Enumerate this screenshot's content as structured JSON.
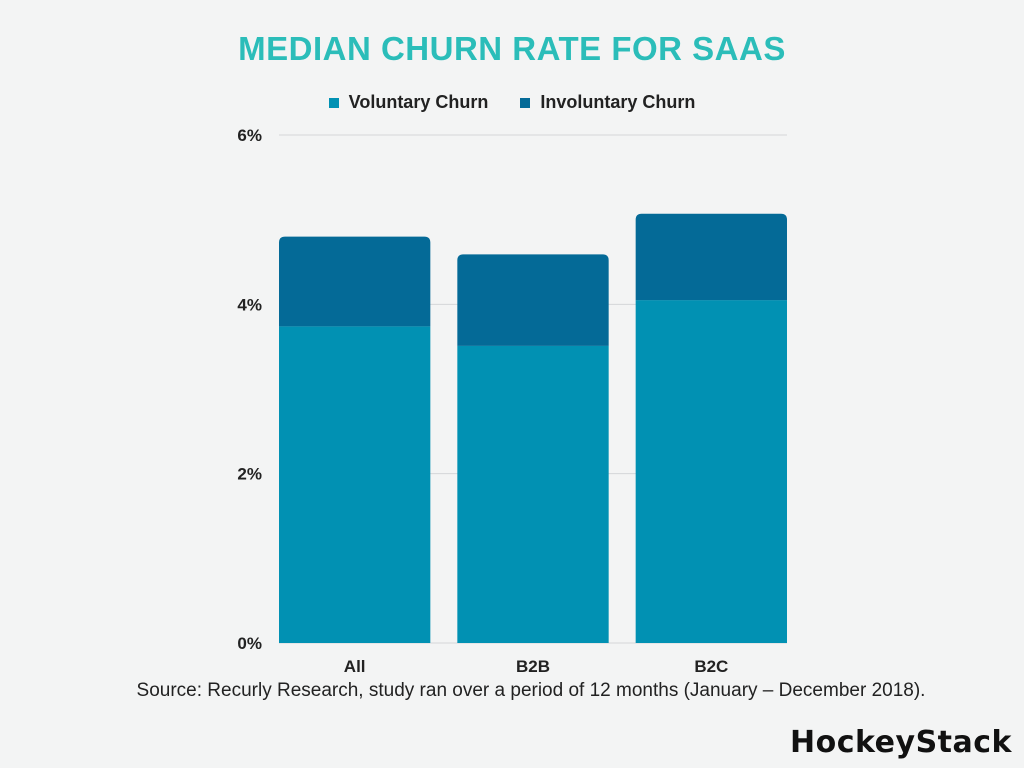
{
  "chart_data": {
    "type": "bar",
    "stacked": true,
    "title": "MEDIAN CHURN RATE FOR SAAS",
    "categories": [
      "All",
      "B2B",
      "B2C"
    ],
    "series": [
      {
        "name": "Voluntary Churn",
        "color": "#0191b3",
        "values": [
          3.74,
          3.51,
          4.05
        ]
      },
      {
        "name": "Involuntary Churn",
        "color": "#046a97",
        "values": [
          1.06,
          1.08,
          1.02
        ]
      }
    ],
    "ylim": [
      0,
      6
    ],
    "yticks": [
      0,
      2,
      4,
      6
    ],
    "ytick_labels": [
      "0%",
      "2%",
      "4%",
      "6%"
    ],
    "xlabel": "",
    "ylabel": "",
    "grid": true,
    "legend": "top-center"
  },
  "source": "Source: Recurly Research, study ran over a period of 12 months (January – December 2018).",
  "brand": "HockeyStack"
}
